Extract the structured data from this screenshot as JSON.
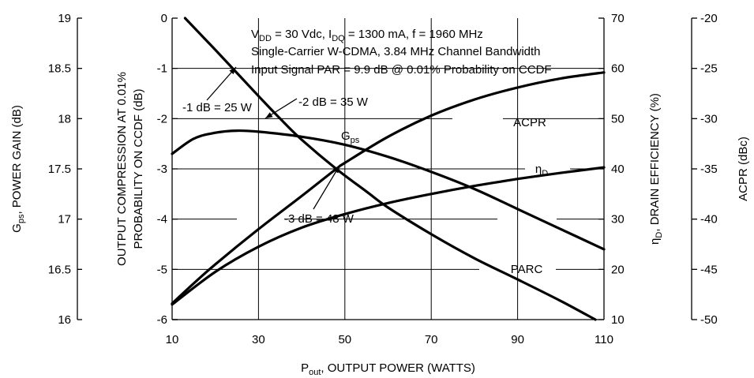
{
  "chart_data": {
    "type": "line",
    "title": "",
    "annotation_lines": [
      "V DD = 30 Vdc, I DQ = 1300 mA, f = 1960 MHz",
      "Single-Carrier W-CDMA, 3.84 MHz Channel Bandwidth",
      "Input Signal PAR = 9.9 dB @ 0.01% Probability on CCDF"
    ],
    "xlabel": {
      "main": "P",
      "sub": "out",
      "rest": ", OUTPUT POWER (WATTS)"
    },
    "xlim": [
      10,
      110
    ],
    "xticks": [
      10,
      30,
      50,
      70,
      90,
      110
    ],
    "axes": {
      "gps": {
        "label_main": "G",
        "label_sub": "ps",
        "label_rest": ", POWER GAIN (dB)",
        "lim": [
          16,
          19
        ],
        "ticks": [
          "16",
          "16.5",
          "17",
          "17.5",
          "18",
          "18.5",
          "19"
        ]
      },
      "parc": {
        "label_line1": "OUTPUT COMPRESSION AT 0.01%",
        "label_line2": "PROBABILITY ON CCDF (dB)",
        "lim": [
          -6,
          0
        ],
        "ticks": [
          "-6",
          "-5",
          "-4",
          "-3",
          "-2",
          "-1",
          "0"
        ]
      },
      "eff": {
        "label_main": "η",
        "label_sub": "D",
        "label_rest": ", DRAIN EFFICIENCY (%)",
        "lim": [
          10,
          70
        ],
        "ticks": [
          "10",
          "20",
          "30",
          "40",
          "50",
          "60",
          "70"
        ]
      },
      "acpr": {
        "label": "ACPR (dBc)",
        "lim": [
          -50,
          -20
        ],
        "ticks": [
          "-50",
          "-45",
          "-40",
          "-35",
          "-30",
          "-25",
          "-20"
        ]
      }
    },
    "series": [
      {
        "name": "PARC",
        "axis": "parc",
        "x": [
          13,
          20,
          30,
          35,
          40,
          48,
          55,
          60,
          70,
          80,
          90,
          100,
          108
        ],
        "values": [
          0,
          -0.63,
          -1.55,
          -2.0,
          -2.42,
          -3.0,
          -3.45,
          -3.77,
          -4.3,
          -4.78,
          -5.2,
          -5.63,
          -6.0
        ]
      },
      {
        "name": "G",
        "name_sub": "ps",
        "axis": "gps",
        "x": [
          10,
          15,
          20,
          25,
          30,
          40,
          50,
          60,
          70,
          80,
          90,
          100,
          110
        ],
        "values": [
          17.65,
          17.8,
          17.86,
          17.88,
          17.87,
          17.82,
          17.74,
          17.62,
          17.47,
          17.3,
          17.1,
          16.9,
          16.7
        ]
      },
      {
        "name": "ACPR",
        "axis": "acpr",
        "x": [
          10,
          15,
          20,
          30,
          40,
          48,
          50,
          60,
          70,
          80,
          90,
          100,
          110
        ],
        "values": [
          -48.4,
          -46.4,
          -44.5,
          -41.0,
          -37.7,
          -35.0,
          -34.4,
          -31.8,
          -29.7,
          -28.1,
          -26.9,
          -26.0,
          -25.4
        ]
      },
      {
        "name": "η",
        "name_sub": "D",
        "axis": "eff",
        "x": [
          10,
          20,
          30,
          40,
          50,
          60,
          70,
          80,
          90,
          100,
          110
        ],
        "values": [
          13.0,
          19.5,
          24.5,
          28.3,
          31.0,
          33.2,
          35.0,
          36.6,
          38.0,
          39.2,
          40.3
        ]
      }
    ],
    "callouts": [
      "-1 dB = 25 W",
      "-2 dB = 35 W",
      "-3 dB = 48 W"
    ],
    "grid": true
  }
}
